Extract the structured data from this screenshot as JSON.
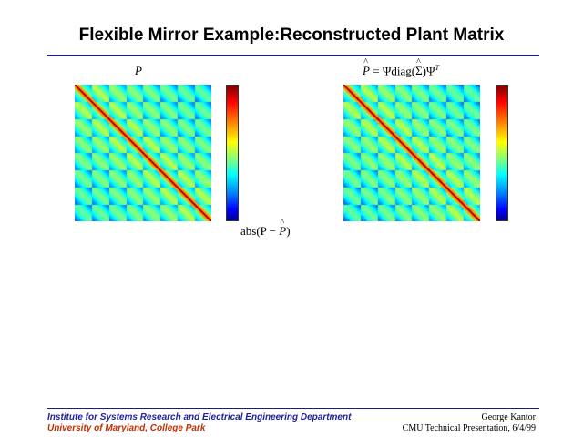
{
  "slide": {
    "title": "Flexible Mirror Example:Reconstructed Plant Matrix"
  },
  "panels": {
    "left": {
      "label": "P"
    },
    "right": {
      "label_lhs": "P",
      "label_eq": " = Ψdiag(",
      "label_sigma": "Σ",
      "label_end": ")Ψ",
      "label_sup": "T"
    },
    "bottom": {
      "label_pre": "abs(P − ",
      "label_p": "P",
      "label_post": ")"
    }
  },
  "footer": {
    "left_line1": "Institute for Systems Research and Electrical Engineering Department",
    "left_line2": "University of Maryland, College Park",
    "right_line1": "George Kantor",
    "right_line2": "CMU Technical Presentation, 6/4/99"
  },
  "colors": {
    "title_rule": "#1a1a8c",
    "footer_left1": "#2020a0",
    "footer_left2": "#c03000"
  }
}
